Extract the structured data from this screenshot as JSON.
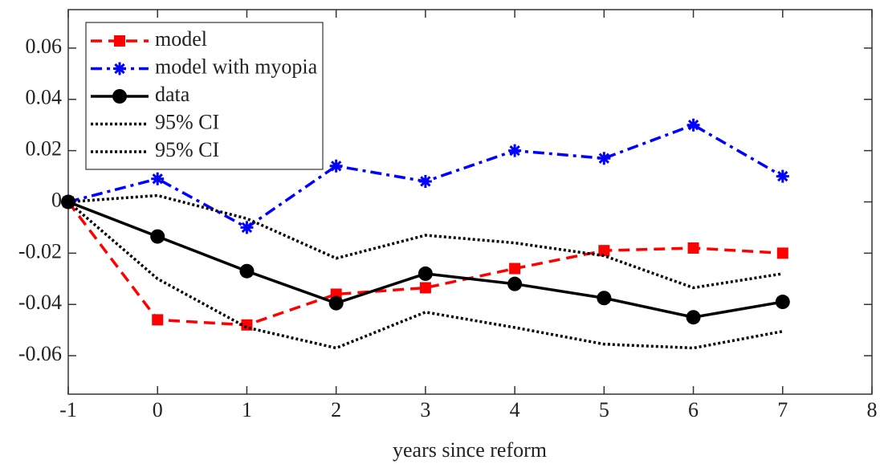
{
  "chart_data": {
    "type": "line",
    "x_label": "years since reform",
    "x": [
      -1,
      0,
      1,
      2,
      3,
      4,
      5,
      6,
      7
    ],
    "series": [
      {
        "name": "model",
        "color": "#ff0000",
        "line_style": "dashed",
        "marker": "square",
        "values": [
          0,
          -0.046,
          -0.048,
          -0.036,
          -0.0335,
          -0.026,
          -0.019,
          -0.018,
          -0.02
        ]
      },
      {
        "name": "model with myopia",
        "color": "#0000ff",
        "line_style": "dashdot",
        "marker": "star",
        "values": [
          0,
          0.009,
          -0.01,
          0.014,
          0.008,
          0.02,
          0.017,
          0.03,
          0.01
        ]
      },
      {
        "name": "data",
        "color": "#000000",
        "line_style": "solid",
        "marker": "circle",
        "values": [
          0,
          -0.0135,
          -0.027,
          -0.0395,
          -0.028,
          -0.032,
          -0.0375,
          -0.045,
          -0.039
        ]
      },
      {
        "name": "95% CI",
        "color": "#000000",
        "line_style": "dotted",
        "values": [
          0,
          0.0025,
          -0.0065,
          -0.022,
          -0.013,
          -0.016,
          -0.021,
          -0.0335,
          -0.028
        ]
      },
      {
        "name": "95% CI",
        "color": "#000000",
        "line_style": "dotted",
        "values": [
          0,
          -0.03,
          -0.049,
          -0.057,
          -0.043,
          -0.049,
          -0.0555,
          -0.057,
          -0.0505
        ]
      }
    ],
    "xlim": [
      -1,
      8
    ],
    "xticks": [
      -1,
      0,
      1,
      2,
      3,
      4,
      5,
      6,
      7,
      8
    ],
    "ylim": [
      -0.075,
      0.075
    ],
    "yticks": [
      -0.06,
      -0.04,
      -0.02,
      0,
      0.02,
      0.04,
      0.06
    ],
    "grid": false,
    "legend": "upper left"
  }
}
